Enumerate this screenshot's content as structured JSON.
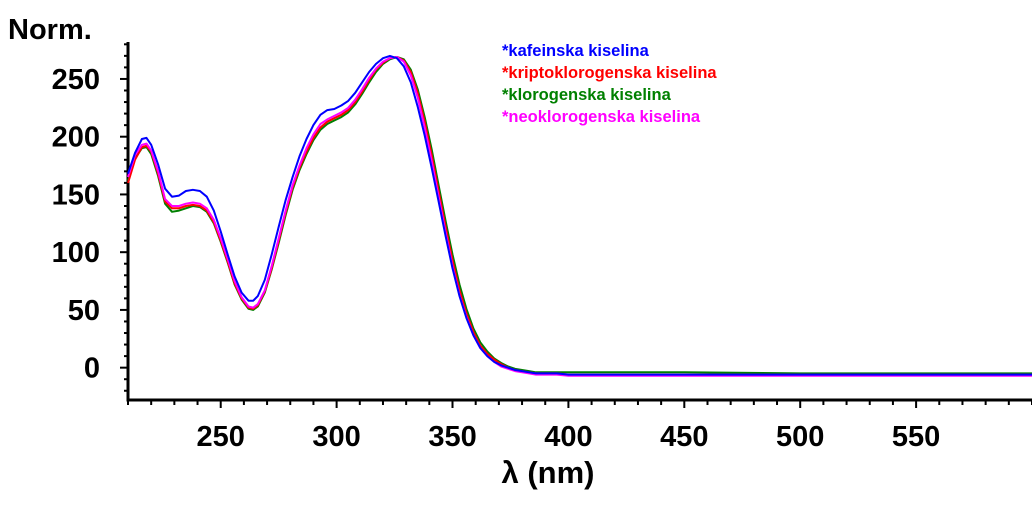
{
  "chart_data": {
    "type": "line",
    "title": "",
    "ylabel": "Norm.",
    "xlabel": "λ (nm)",
    "xlim": [
      210,
      600
    ],
    "ylim": [
      -28,
      282
    ],
    "x_ticks": [
      250,
      300,
      350,
      400,
      450,
      500,
      550
    ],
    "y_ticks": [
      0,
      50,
      100,
      150,
      200,
      250
    ],
    "legend_position": "top-right",
    "grid": false,
    "series": [
      {
        "name": "*kafeinska kiselina",
        "color": "#0000ff",
        "x": [
          210,
          213,
          216,
          218,
          220,
          223,
          226,
          229,
          232,
          235,
          238,
          241,
          244,
          247,
          250,
          253,
          256,
          259,
          262,
          264,
          266,
          269,
          272,
          275,
          278,
          281,
          284,
          287,
          290,
          293,
          296,
          299,
          302,
          305,
          308,
          311,
          314,
          317,
          320,
          323,
          326,
          329,
          332,
          335,
          338,
          341,
          344,
          347,
          350,
          353,
          356,
          359,
          362,
          365,
          368,
          371,
          374,
          377,
          380,
          383,
          386,
          390,
          395,
          400,
          420,
          450,
          500,
          550,
          600
        ],
        "y": [
          168,
          186,
          198,
          199,
          193,
          176,
          155,
          148,
          149,
          153,
          154,
          153,
          148,
          136,
          118,
          98,
          79,
          65,
          58,
          58,
          62,
          76,
          98,
          122,
          145,
          165,
          183,
          198,
          210,
          219,
          223,
          224,
          227,
          231,
          238,
          247,
          256,
          263,
          268,
          270,
          268,
          261,
          247,
          226,
          201,
          173,
          144,
          114,
          86,
          62,
          43,
          28,
          17,
          10,
          5,
          2,
          0,
          -2,
          -3,
          -4,
          -5,
          -5,
          -5,
          -6,
          -6,
          -6,
          -6,
          -6,
          -6
        ]
      },
      {
        "name": "*kriptoklorogenska kiselina",
        "color": "#ff0000",
        "x": [
          210,
          213,
          216,
          218,
          220,
          223,
          226,
          229,
          232,
          235,
          238,
          241,
          244,
          247,
          250,
          253,
          256,
          259,
          262,
          264,
          266,
          269,
          272,
          275,
          278,
          281,
          284,
          287,
          290,
          293,
          296,
          299,
          302,
          305,
          308,
          311,
          314,
          317,
          320,
          323,
          326,
          329,
          332,
          335,
          338,
          341,
          344,
          347,
          350,
          353,
          356,
          359,
          362,
          365,
          368,
          371,
          374,
          377,
          380,
          383,
          386,
          390,
          395,
          400,
          420,
          450,
          500,
          550,
          600
        ],
        "y": [
          160,
          180,
          191,
          192,
          187,
          168,
          144,
          138,
          138,
          140,
          141,
          140,
          136,
          126,
          110,
          92,
          73,
          60,
          52,
          51,
          54,
          66,
          86,
          110,
          134,
          156,
          173,
          187,
          199,
          208,
          213,
          216,
          219,
          223,
          230,
          239,
          249,
          258,
          264,
          268,
          269,
          266,
          256,
          238,
          213,
          184,
          153,
          122,
          93,
          67,
          47,
          31,
          19,
          12,
          7,
          3,
          0,
          -2,
          -3,
          -4,
          -5,
          -5,
          -5,
          -6,
          -6,
          -6,
          -6,
          -6,
          -6
        ]
      },
      {
        "name": "*klorogenska kiselina",
        "color": "#008000",
        "x": [
          210,
          213,
          216,
          218,
          220,
          223,
          226,
          229,
          232,
          235,
          238,
          241,
          244,
          247,
          250,
          253,
          256,
          259,
          262,
          264,
          266,
          269,
          272,
          275,
          278,
          281,
          284,
          287,
          290,
          293,
          296,
          299,
          302,
          305,
          308,
          311,
          314,
          317,
          320,
          323,
          326,
          329,
          332,
          335,
          338,
          341,
          344,
          347,
          350,
          353,
          356,
          359,
          362,
          365,
          368,
          371,
          374,
          377,
          380,
          383,
          386,
          390,
          395,
          400,
          420,
          450,
          500,
          550,
          600
        ],
        "y": [
          162,
          181,
          190,
          191,
          185,
          166,
          142,
          135,
          136,
          138,
          140,
          139,
          135,
          125,
          109,
          91,
          72,
          59,
          51,
          50,
          53,
          65,
          85,
          108,
          132,
          154,
          171,
          185,
          197,
          206,
          211,
          214,
          217,
          221,
          228,
          237,
          247,
          256,
          263,
          267,
          269,
          267,
          258,
          241,
          217,
          189,
          158,
          127,
          98,
          72,
          51,
          34,
          22,
          14,
          8,
          4,
          1,
          -1,
          -2,
          -3,
          -4,
          -4,
          -4,
          -4,
          -4,
          -4,
          -5,
          -5,
          -5
        ]
      },
      {
        "name": "*neoklorogenska kiselina",
        "color": "#ff00ff",
        "x": [
          210,
          213,
          216,
          218,
          220,
          223,
          226,
          229,
          232,
          235,
          238,
          241,
          244,
          247,
          250,
          253,
          256,
          259,
          262,
          264,
          266,
          269,
          272,
          275,
          278,
          281,
          284,
          287,
          290,
          293,
          296,
          299,
          302,
          305,
          308,
          311,
          314,
          317,
          320,
          323,
          326,
          329,
          332,
          335,
          338,
          341,
          344,
          347,
          350,
          353,
          356,
          359,
          362,
          365,
          368,
          371,
          374,
          377,
          380,
          383,
          386,
          390,
          395,
          400,
          420,
          450,
          500,
          550,
          600
        ],
        "y": [
          165,
          184,
          193,
          194,
          188,
          170,
          146,
          140,
          140,
          142,
          143,
          142,
          138,
          128,
          112,
          94,
          75,
          61,
          53,
          52,
          55,
          67,
          88,
          112,
          136,
          158,
          175,
          190,
          202,
          211,
          215,
          218,
          221,
          225,
          232,
          241,
          251,
          259,
          265,
          268,
          269,
          265,
          253,
          234,
          208,
          179,
          148,
          117,
          88,
          63,
          44,
          28,
          17,
          10,
          5,
          1,
          -1,
          -3,
          -4,
          -5,
          -6,
          -6,
          -6,
          -7,
          -7,
          -7,
          -7,
          -7,
          -7
        ]
      }
    ]
  }
}
